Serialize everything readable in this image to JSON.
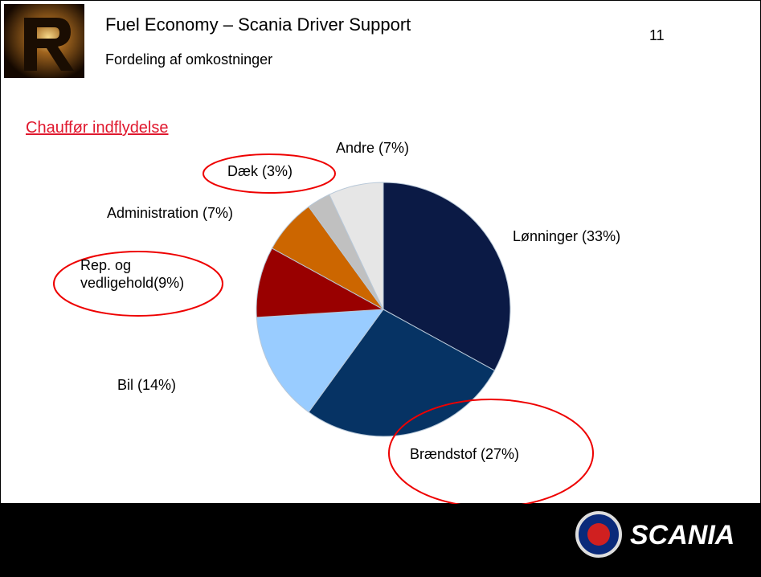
{
  "header": {
    "title": "Fuel Economy – Scania Driver Support",
    "subtitle": "Fordeling af omkostninger",
    "page_number": "11"
  },
  "section_heading": "Chauffør indflydelse",
  "chart_data": {
    "type": "pie",
    "categories": [
      "Lønninger (33%)",
      "Brændstof (27%)",
      "Bil (14%)",
      "Rep. og\nvedligehold(9%)",
      "Administration (7%)",
      "Dæk (3%)",
      "Andre (7%)"
    ],
    "values": [
      33,
      27,
      14,
      9,
      7,
      3,
      7
    ],
    "colors": [
      "#0b1a45",
      "#063364",
      "#99ccff",
      "#990000",
      "#cc6600",
      "#c0c0c0",
      "#e6e6e6"
    ]
  },
  "footer": {
    "brand": "SCANIA"
  }
}
